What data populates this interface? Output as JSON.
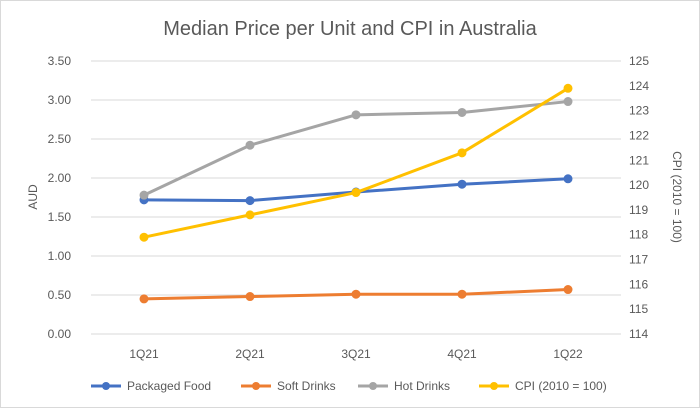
{
  "chart_data": {
    "type": "line",
    "title": "Median Price per Unit and CPI in Australia",
    "categories": [
      "1Q21",
      "2Q21",
      "3Q21",
      "4Q21",
      "1Q22"
    ],
    "ylabel": "AUD",
    "y2label": "CPI (2010 = 100)",
    "ylim": [
      0,
      3.5
    ],
    "y2lim": [
      114,
      125
    ],
    "yticks": [
      "0.00",
      "0.50",
      "1.00",
      "1.50",
      "2.00",
      "2.50",
      "3.00",
      "3.50"
    ],
    "y2ticks": [
      "114",
      "115",
      "116",
      "117",
      "118",
      "119",
      "120",
      "121",
      "122",
      "123",
      "124",
      "125"
    ],
    "grid": true,
    "legend": "bottom",
    "series": [
      {
        "name": "Packaged Food",
        "axis": "left",
        "color": "#4472c4",
        "values": [
          1.72,
          1.71,
          1.82,
          1.92,
          1.99
        ]
      },
      {
        "name": "Soft Drinks",
        "axis": "left",
        "color": "#ed7d31",
        "values": [
          0.45,
          0.48,
          0.51,
          0.51,
          0.57
        ]
      },
      {
        "name": "Hot Drinks",
        "axis": "left",
        "color": "#a5a5a5",
        "values": [
          1.78,
          2.42,
          2.81,
          2.84,
          2.98
        ]
      },
      {
        "name": "CPI (2010 = 100)",
        "axis": "right",
        "color": "#ffc000",
        "values": [
          117.9,
          118.8,
          119.7,
          121.3,
          123.9
        ]
      }
    ]
  }
}
